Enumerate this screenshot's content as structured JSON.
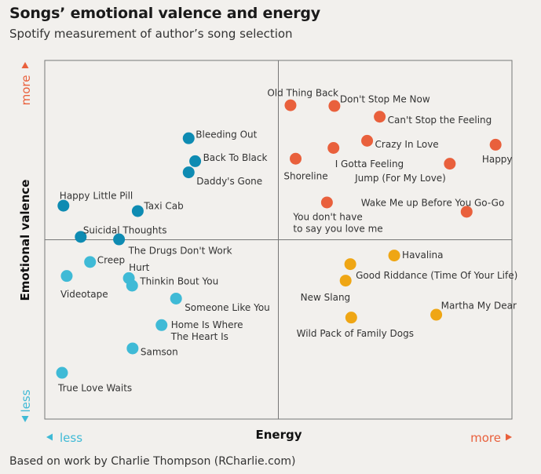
{
  "colors": {
    "tr": "#e9603c",
    "tl": "#0e8bb2",
    "bl": "#3fbad6",
    "br": "#efa614",
    "more": "#e9603c",
    "less": "#3fbad6"
  },
  "chart_data": {
    "type": "scatter",
    "title": "Songs’ emotional valence and energy",
    "subtitle": "Spotify measurement of author’s song selection",
    "xlabel": "Energy",
    "ylabel": "Emotional valence",
    "x_less": "less",
    "x_more": "more",
    "y_less": "less",
    "y_more": "more",
    "footer": "Based on work by Charlie Thompson (RCharlie.com)",
    "xlim": [
      0,
      1
    ],
    "ylim": [
      0,
      1
    ],
    "divider_x": 0.5,
    "divider_y": 0.5,
    "points": [
      {
        "label": "Old Thing Back",
        "x": 0.526,
        "y": 0.875,
        "quadrant": "tr",
        "anchor": "end",
        "dx": 61,
        "dy": -15
      },
      {
        "label": "Don't Stop Me Now",
        "x": 0.62,
        "y": 0.873,
        "quadrant": "tr",
        "anchor": "start",
        "dx": 7,
        "dy": -8
      },
      {
        "label": "Can't Stop the Feeling",
        "x": 0.717,
        "y": 0.843,
        "quadrant": "tr",
        "anchor": "start",
        "dx": 10,
        "dy": 5
      },
      {
        "label": "Crazy In Love",
        "x": 0.69,
        "y": 0.776,
        "quadrant": "tr",
        "anchor": "start",
        "dx": 10,
        "dy": 5
      },
      {
        "label": "Happy",
        "x": 0.965,
        "y": 0.765,
        "quadrant": "tr",
        "anchor": "middle",
        "dx": 2,
        "dy": 19
      },
      {
        "label": "I Gotta Feeling",
        "x": 0.618,
        "y": 0.756,
        "quadrant": "tr",
        "anchor": "start",
        "dx": 2,
        "dy": 21
      },
      {
        "label": "Shoreline",
        "x": 0.537,
        "y": 0.726,
        "quadrant": "tr",
        "anchor": "middle",
        "dx": 13,
        "dy": 23
      },
      {
        "label": "Jump (For My Love)",
        "x": 0.867,
        "y": 0.712,
        "quadrant": "tr",
        "anchor": "end",
        "dx": -5,
        "dy": 19
      },
      {
        "label": "Wake Me up Before You Go-Go",
        "x": 0.903,
        "y": 0.578,
        "quadrant": "tr",
        "anchor": "end",
        "dx": 48,
        "dy": -11
      },
      {
        "label": "You don't have",
        "x": 0.604,
        "y": 0.604,
        "quadrant": "tr",
        "anchor": "start",
        "dx": -43,
        "dy": 19
      },
      {
        "label": "to say you love me",
        "x": 0.604,
        "y": 0.604,
        "quadrant": "tr",
        "anchor": "start",
        "dx": -43,
        "dy": 34,
        "no_dot": true
      },
      {
        "label": "Bleeding Out",
        "x": 0.308,
        "y": 0.783,
        "quadrant": "tl",
        "anchor": "start",
        "dx": 9,
        "dy": -4
      },
      {
        "label": "Back To Black",
        "x": 0.322,
        "y": 0.719,
        "quadrant": "tl",
        "anchor": "start",
        "dx": 10,
        "dy": -4
      },
      {
        "label": "Daddy's Gone",
        "x": 0.308,
        "y": 0.688,
        "quadrant": "tl",
        "anchor": "start",
        "dx": 10,
        "dy": 12
      },
      {
        "label": "Happy Little Pill",
        "x": 0.04,
        "y": 0.595,
        "quadrant": "tl",
        "anchor": "start",
        "dx": -5,
        "dy": -12
      },
      {
        "label": "Taxi Cab",
        "x": 0.199,
        "y": 0.58,
        "quadrant": "tl",
        "anchor": "start",
        "dx": 8,
        "dy": -6
      },
      {
        "label": "Suicidal Thoughts",
        "x": 0.077,
        "y": 0.508,
        "quadrant": "tl",
        "anchor": "start",
        "dx": 3,
        "dy": -8
      },
      {
        "label": "The Drugs Don't Work",
        "x": 0.159,
        "y": 0.501,
        "quadrant": "tl",
        "anchor": "start",
        "dx": 12,
        "dy": 15
      },
      {
        "label": "Creep",
        "x": 0.097,
        "y": 0.438,
        "quadrant": "bl",
        "anchor": "start",
        "dx": 9,
        "dy": -2
      },
      {
        "label": "Videotape",
        "x": 0.047,
        "y": 0.399,
        "quadrant": "bl",
        "anchor": "start",
        "dx": -8,
        "dy": 24
      },
      {
        "label": "Hurt",
        "x": 0.18,
        "y": 0.393,
        "quadrant": "bl",
        "anchor": "start",
        "dx": 0,
        "dy": -13
      },
      {
        "label": "Thinkin Bout You",
        "x": 0.187,
        "y": 0.372,
        "quadrant": "bl",
        "anchor": "start",
        "dx": 10,
        "dy": -5
      },
      {
        "label": "Someone Like You",
        "x": 0.281,
        "y": 0.336,
        "quadrant": "bl",
        "anchor": "start",
        "dx": 11,
        "dy": 12
      },
      {
        "label": "Home Is Where",
        "x": 0.25,
        "y": 0.262,
        "quadrant": "bl",
        "anchor": "start",
        "dx": 12,
        "dy": 0
      },
      {
        "label": "The Heart Is",
        "x": 0.25,
        "y": 0.262,
        "quadrant": "bl",
        "anchor": "start",
        "dx": 12,
        "dy": 15,
        "no_dot": true
      },
      {
        "label": "Samson",
        "x": 0.188,
        "y": 0.197,
        "quadrant": "bl",
        "anchor": "start",
        "dx": 10,
        "dy": 5
      },
      {
        "label": "True Love Waits",
        "x": 0.037,
        "y": 0.129,
        "quadrant": "bl",
        "anchor": "start",
        "dx": -5,
        "dy": 20
      },
      {
        "label": "Havalina",
        "x": 0.748,
        "y": 0.456,
        "quadrant": "br",
        "anchor": "start",
        "dx": 10,
        "dy": 0
      },
      {
        "label": "Good Riddance (Time Of Your Life)",
        "x": 0.654,
        "y": 0.432,
        "quadrant": "br",
        "anchor": "start",
        "dx": 7,
        "dy": 15
      },
      {
        "label": "New Slang",
        "x": 0.644,
        "y": 0.386,
        "quadrant": "br",
        "anchor": "end",
        "dx": 6,
        "dy": 22
      },
      {
        "label": "Martha My Dear",
        "x": 0.838,
        "y": 0.291,
        "quadrant": "br",
        "anchor": "start",
        "dx": 6,
        "dy": -11
      },
      {
        "label": "Wild Pack of Family Dogs",
        "x": 0.656,
        "y": 0.283,
        "quadrant": "br",
        "anchor": "middle",
        "dx": 5,
        "dy": 21
      }
    ]
  }
}
